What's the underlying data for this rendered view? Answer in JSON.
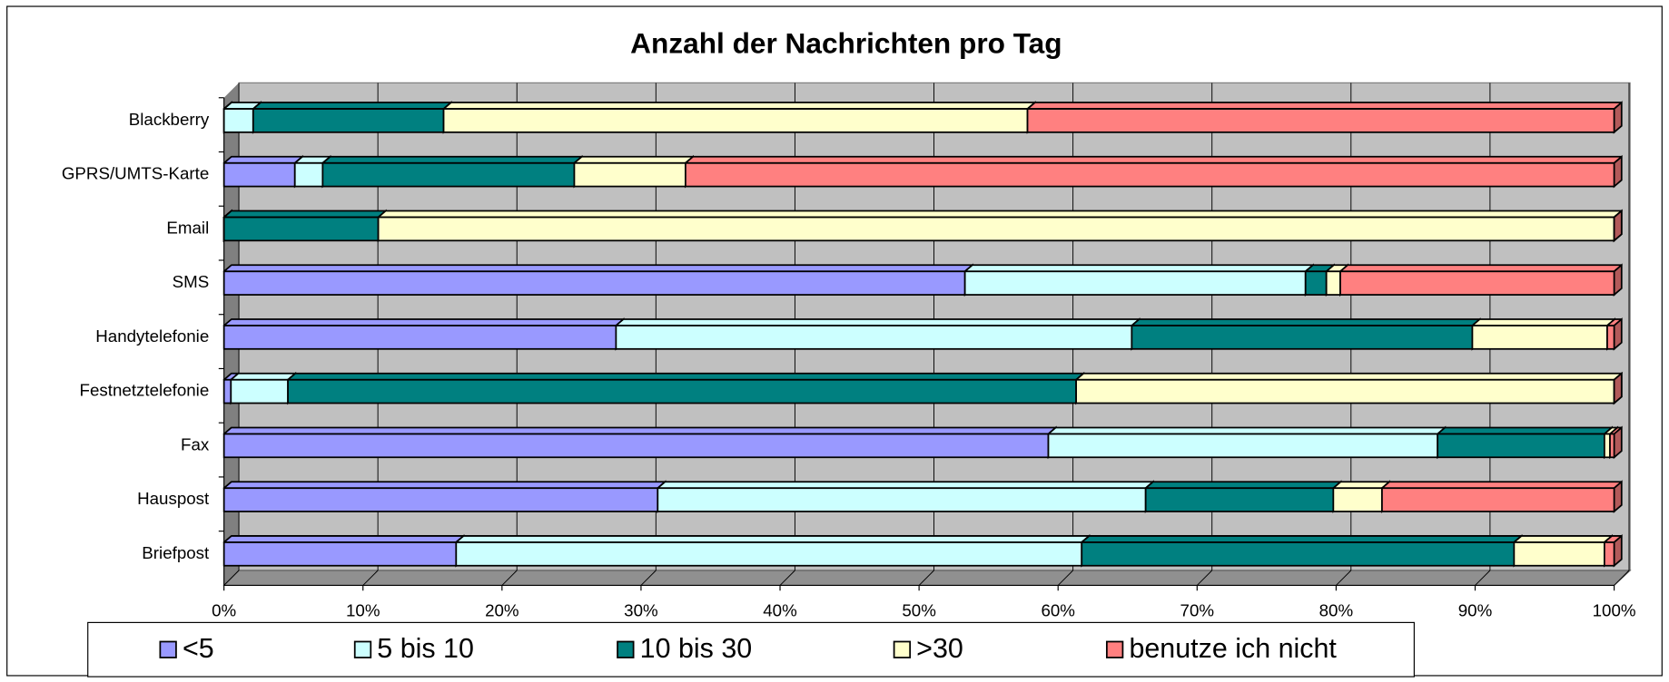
{
  "chart_data": {
    "type": "stacked_bar_horizontal",
    "title": "Anzahl der Nachrichten pro Tag",
    "categories": [
      "Blackberry",
      "GPRS/UMTS-Karte",
      "Email",
      "SMS",
      "Handytelefonie",
      "Festnetztelefonie",
      "Fax",
      "Hauspost",
      "Briefpost"
    ],
    "series": [
      {
        "name": "<5",
        "color": "#9999ff",
        "values": [
          0,
          5.1,
          0,
          53.3,
          28.2,
          0.5,
          59.3,
          31.2,
          16.7
        ]
      },
      {
        "name": "5 bis 10",
        "color": "#ccffff",
        "values": [
          2.1,
          2,
          0,
          24.5,
          37.1,
          4.1,
          28,
          35.1,
          45
        ]
      },
      {
        "name": "10 bis 30",
        "color": "#008080",
        "values": [
          13.7,
          18.1,
          11.1,
          1.5,
          24.5,
          56.7,
          12,
          13.5,
          31.1
        ]
      },
      {
        "name": ">30",
        "color": "#ffffcc",
        "values": [
          42,
          8,
          88.9,
          1,
          9.7,
          38.7,
          0.4,
          3.5,
          6.5
        ]
      },
      {
        "name": "benutze ich nicht",
        "color": "#ff8080",
        "values": [
          42.2,
          66.8,
          0,
          19.7,
          0.5,
          0,
          0.3,
          16.7,
          0.7
        ]
      }
    ],
    "xlim": [
      0,
      100
    ],
    "xticks": [
      {
        "value": 0,
        "label": "0%"
      },
      {
        "value": 10,
        "label": "10%"
      },
      {
        "value": 20,
        "label": "20%"
      },
      {
        "value": 30,
        "label": "30%"
      },
      {
        "value": 40,
        "label": "40%"
      },
      {
        "value": 50,
        "label": "50%"
      },
      {
        "value": 60,
        "label": "60%"
      },
      {
        "value": 70,
        "label": "70%"
      },
      {
        "value": 80,
        "label": "80%"
      },
      {
        "value": 90,
        "label": "90%"
      },
      {
        "value": 100,
        "label": "100%"
      }
    ],
    "grid": true,
    "legend": "bottom"
  }
}
